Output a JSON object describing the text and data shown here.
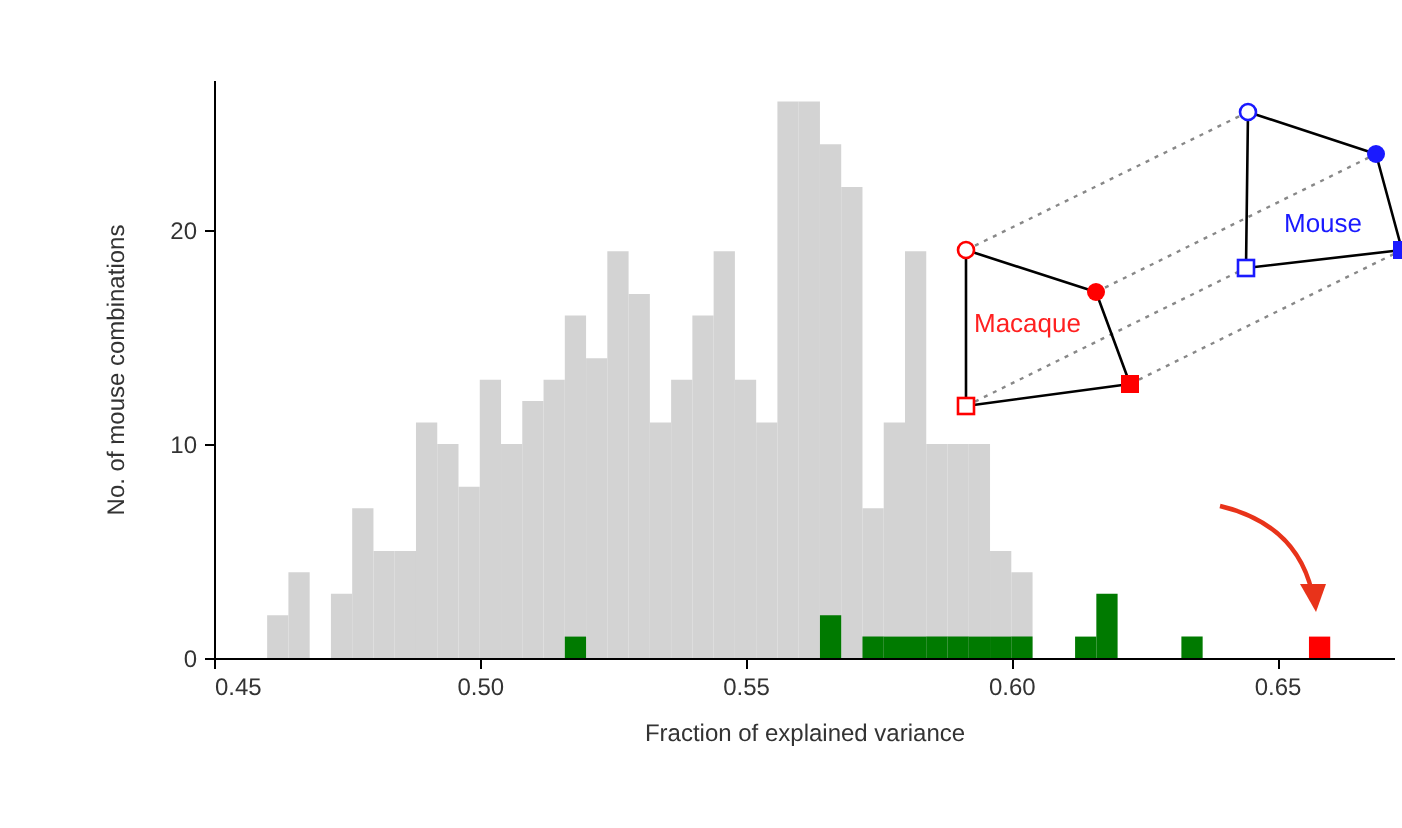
{
  "chart_data": {
    "type": "histogram",
    "xlabel": "Fraction of explained variance",
    "ylabel": "No. of mouse combinations",
    "bins": [
      0.46,
      0.464,
      0.468,
      0.472,
      0.476,
      0.48,
      0.484,
      0.488,
      0.492,
      0.496,
      0.5,
      0.504,
      0.508,
      0.512,
      0.516,
      0.52,
      0.524,
      0.528,
      0.532,
      0.536,
      0.54,
      0.544,
      0.548,
      0.552,
      0.556,
      0.56,
      0.564,
      0.568,
      0.572,
      0.576,
      0.58,
      0.584,
      0.588,
      0.592,
      0.596,
      0.6,
      0.604,
      0.608,
      0.612,
      0.616,
      0.62,
      0.624,
      0.628,
      0.632,
      0.636,
      0.64,
      0.644,
      0.648,
      0.652,
      0.656,
      0.66
    ],
    "series": [
      {
        "color": "#d3d3d3",
        "values": [
          2,
          4,
          0,
          3,
          7,
          5,
          5,
          11,
          10,
          8,
          13,
          10,
          12,
          13,
          16,
          14,
          19,
          17,
          11,
          13,
          16,
          19,
          13,
          11,
          26,
          26,
          24,
          22,
          7,
          11,
          19,
          10,
          10,
          10,
          5,
          4,
          0,
          0,
          0,
          0,
          0,
          0,
          0,
          0,
          0,
          0,
          0,
          0,
          0,
          0
        ]
      },
      {
        "color": "#007a00",
        "values": [
          0,
          0,
          0,
          0,
          0,
          0,
          0,
          0,
          0,
          0,
          0,
          0,
          0,
          0,
          1,
          0,
          0,
          0,
          0,
          0,
          0,
          0,
          0,
          0,
          0,
          0,
          2,
          0,
          1,
          1,
          1,
          1,
          1,
          1,
          1,
          1,
          0,
          0,
          1,
          3,
          0,
          0,
          0,
          1,
          0,
          0,
          0,
          0,
          0,
          0
        ]
      },
      {
        "color": "#ff0000",
        "values": [
          0,
          0,
          0,
          0,
          0,
          0,
          0,
          0,
          0,
          0,
          0,
          0,
          0,
          0,
          0,
          0,
          0,
          0,
          0,
          0,
          0,
          0,
          0,
          0,
          0,
          0,
          0,
          0,
          0,
          0,
          0,
          0,
          0,
          0,
          0,
          0,
          0,
          0,
          0,
          0,
          0,
          0,
          0,
          0,
          0,
          0,
          0,
          0,
          0,
          1
        ]
      }
    ],
    "xlim": [
      0.45,
      0.672
    ],
    "ylim": [
      0,
      27
    ],
    "xticks": [
      {
        "value": 0.45,
        "label": "0.45"
      },
      {
        "value": 0.5,
        "label": "0.50"
      },
      {
        "value": 0.55,
        "label": "0.55"
      },
      {
        "value": 0.6,
        "label": "0.60"
      },
      {
        "value": 0.65,
        "label": "0.65"
      }
    ],
    "yticks": [
      0,
      10,
      20
    ],
    "grid": false,
    "legend": false,
    "annotations": [
      "Macaque",
      "Mouse"
    ]
  }
}
